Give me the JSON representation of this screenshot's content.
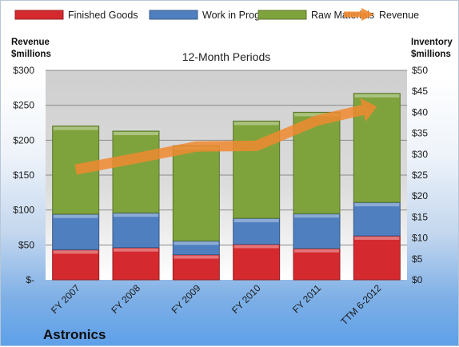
{
  "chart_data": {
    "type": "bar",
    "stacked": true,
    "title": "12-Month Periods",
    "company": "Astronics",
    "categories": [
      "FY 2007",
      "FY 2008",
      "FY 2009",
      "FY 2010",
      "FY 2011",
      "TTM 6-2012"
    ],
    "series": [
      {
        "name": "Finished Goods",
        "type": "bar",
        "axis": "right",
        "color": "#d42a2f",
        "values": [
          7.2,
          7.7,
          6.0,
          8.5,
          7.5,
          10.5
        ]
      },
      {
        "name": "Work in Progress",
        "type": "bar",
        "axis": "right",
        "color": "#4f7fbf",
        "values": [
          8.5,
          8.3,
          3.3,
          6.2,
          8.3,
          8.0
        ]
      },
      {
        "name": "Raw Materials",
        "type": "bar",
        "axis": "right",
        "color": "#7fa33c",
        "values": [
          21.0,
          19.5,
          22.7,
          23.2,
          24.2,
          26.0
        ]
      },
      {
        "name": "Revenue",
        "type": "line",
        "axis": "left",
        "color": "#f08a30",
        "values": [
          158,
          174,
          191,
          192,
          228,
          248
        ]
      }
    ],
    "left_axis": {
      "label_line1": "Revenue",
      "label_line2": "$millions",
      "range": [
        0,
        300
      ],
      "ticks": [
        {
          "v": 0,
          "label": "$-"
        },
        {
          "v": 50,
          "label": "$50"
        },
        {
          "v": 100,
          "label": "$100"
        },
        {
          "v": 150,
          "label": "$150"
        },
        {
          "v": 200,
          "label": "$200"
        },
        {
          "v": 250,
          "label": "$250"
        },
        {
          "v": 300,
          "label": "$300"
        }
      ]
    },
    "right_axis": {
      "label_line1": "Inventory",
      "label_line2": "$millions",
      "range": [
        0,
        50
      ],
      "ticks": [
        {
          "v": 0,
          "label": "$0"
        },
        {
          "v": 5,
          "label": "$5"
        },
        {
          "v": 10,
          "label": "$10"
        },
        {
          "v": 15,
          "label": "$15"
        },
        {
          "v": 20,
          "label": "$20"
        },
        {
          "v": 25,
          "label": "$25"
        },
        {
          "v": 30,
          "label": "$30"
        },
        {
          "v": 35,
          "label": "$35"
        },
        {
          "v": 40,
          "label": "$40"
        },
        {
          "v": 45,
          "label": "$45"
        },
        {
          "v": 50,
          "label": "$50"
        }
      ]
    },
    "grid": true,
    "legend": "top"
  }
}
